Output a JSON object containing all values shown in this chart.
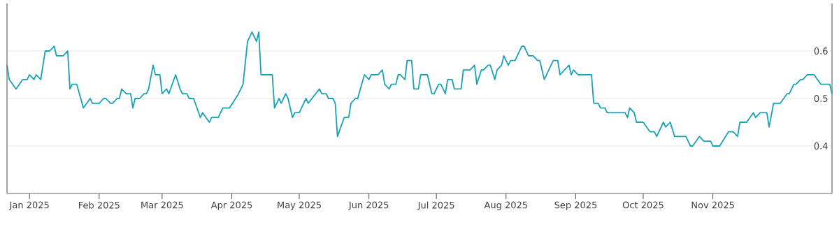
{
  "chart_data": {
    "type": "line",
    "color": "#17a3b6",
    "grid": "y",
    "xlim": [
      "2024-12-22",
      "2025-12-24"
    ],
    "ylim": [
      0.3,
      0.7
    ],
    "xticks": [
      {
        "value": "2025-01-01",
        "label": "Jan 2025"
      },
      {
        "value": "2025-02-01",
        "label": "Feb 2025"
      },
      {
        "value": "2025-03-01",
        "label": "Mar 2025"
      },
      {
        "value": "2025-04-01",
        "label": "Apr 2025"
      },
      {
        "value": "2025-05-01",
        "label": "May 2025"
      },
      {
        "value": "2025-06-01",
        "label": "Jun 2025"
      },
      {
        "value": "2025-07-01",
        "label": "Jul 2025"
      },
      {
        "value": "2025-08-01",
        "label": "Aug 2025"
      },
      {
        "value": "2025-09-01",
        "label": "Sep 2025"
      },
      {
        "value": "2025-10-01",
        "label": "Oct 2025"
      },
      {
        "value": "2025-11-01",
        "label": "Nov 2025"
      }
    ],
    "yticks": [
      0.4,
      0.5,
      0.6
    ],
    "x": [
      "2024-12-22",
      "2024-12-23",
      "2024-12-26",
      "2024-12-29",
      "2024-12-31",
      "2025-01-01",
      "2025-01-03",
      "2025-01-04",
      "2025-01-06",
      "2025-01-08",
      "2025-01-10",
      "2025-01-12",
      "2025-01-13",
      "2025-01-16",
      "2025-01-18",
      "2025-01-19",
      "2025-01-20",
      "2025-01-22",
      "2025-01-25",
      "2025-01-28",
      "2025-01-29",
      "2025-02-01",
      "2025-02-03",
      "2025-02-04",
      "2025-02-06",
      "2025-02-07",
      "2025-02-09",
      "2025-02-10",
      "2025-02-11",
      "2025-02-13",
      "2025-02-15",
      "2025-02-16",
      "2025-02-17",
      "2025-02-19",
      "2025-02-21",
      "2025-02-22",
      "2025-02-23",
      "2025-02-25",
      "2025-02-26",
      "2025-02-28",
      "2025-03-01",
      "2025-03-03",
      "2025-03-04",
      "2025-03-07",
      "2025-03-09",
      "2025-03-10",
      "2025-03-12",
      "2025-03-13",
      "2025-03-15",
      "2025-03-18",
      "2025-03-19",
      "2025-03-22",
      "2025-03-23",
      "2025-03-26",
      "2025-03-28",
      "2025-03-31",
      "2025-04-04",
      "2025-04-06",
      "2025-04-08",
      "2025-04-10",
      "2025-04-12",
      "2025-04-13",
      "2025-04-14",
      "2025-04-19",
      "2025-04-20",
      "2025-04-22",
      "2025-04-23",
      "2025-04-25",
      "2025-04-26",
      "2025-04-28",
      "2025-04-29",
      "2025-05-01",
      "2025-05-02",
      "2025-05-04",
      "2025-05-05",
      "2025-05-10",
      "2025-05-11",
      "2025-05-13",
      "2025-05-14",
      "2025-05-16",
      "2025-05-17",
      "2025-05-18",
      "2025-05-21",
      "2025-05-23",
      "2025-05-24",
      "2025-05-26",
      "2025-05-27",
      "2025-05-30",
      "2025-06-01",
      "2025-06-02",
      "2025-06-05",
      "2025-06-07",
      "2025-06-08",
      "2025-06-10",
      "2025-06-11",
      "2025-06-13",
      "2025-06-14",
      "2025-06-15",
      "2025-06-17",
      "2025-06-18",
      "2025-06-20",
      "2025-06-21",
      "2025-06-23",
      "2025-06-24",
      "2025-06-27",
      "2025-06-29",
      "2025-06-30",
      "2025-07-02",
      "2025-07-03",
      "2025-07-05",
      "2025-07-06",
      "2025-07-08",
      "2025-07-09",
      "2025-07-12",
      "2025-07-13",
      "2025-07-16",
      "2025-07-18",
      "2025-07-19",
      "2025-07-21",
      "2025-07-22",
      "2025-07-24",
      "2025-07-25",
      "2025-07-27",
      "2025-07-28",
      "2025-07-30",
      "2025-07-31",
      "2025-08-02",
      "2025-08-03",
      "2025-08-05",
      "2025-08-06",
      "2025-08-08",
      "2025-08-09",
      "2025-08-11",
      "2025-08-13",
      "2025-08-15",
      "2025-08-16",
      "2025-08-18",
      "2025-08-20",
      "2025-08-22",
      "2025-08-24",
      "2025-08-25",
      "2025-08-29",
      "2025-08-30",
      "2025-08-31",
      "2025-09-02",
      "2025-09-08",
      "2025-09-09",
      "2025-09-11",
      "2025-09-12",
      "2025-09-14",
      "2025-09-15",
      "2025-09-23",
      "2025-09-24",
      "2025-09-25",
      "2025-09-27",
      "2025-09-28",
      "2025-10-01",
      "2025-10-04",
      "2025-10-06",
      "2025-10-07",
      "2025-10-08",
      "2025-10-10",
      "2025-10-11",
      "2025-10-13",
      "2025-10-15",
      "2025-10-20",
      "2025-10-22",
      "2025-10-23",
      "2025-10-26",
      "2025-10-28",
      "2025-10-31",
      "2025-11-01",
      "2025-11-04",
      "2025-11-08",
      "2025-11-10",
      "2025-11-12",
      "2025-11-13",
      "2025-11-16",
      "2025-11-19",
      "2025-11-20",
      "2025-11-22",
      "2025-11-25",
      "2025-11-26",
      "2025-11-28",
      "2025-12-01",
      "2025-12-04",
      "2025-12-05",
      "2025-12-07",
      "2025-12-08",
      "2025-12-10",
      "2025-12-11",
      "2025-12-13",
      "2025-12-16",
      "2025-12-19",
      "2025-12-23",
      "2025-12-24"
    ],
    "values": [
      0.57,
      0.54,
      0.52,
      0.54,
      0.54,
      0.55,
      0.54,
      0.55,
      0.54,
      0.6,
      0.6,
      0.61,
      0.59,
      0.59,
      0.6,
      0.52,
      0.53,
      0.53,
      0.48,
      0.5,
      0.49,
      0.49,
      0.5,
      0.5,
      0.49,
      0.49,
      0.5,
      0.5,
      0.52,
      0.51,
      0.51,
      0.48,
      0.5,
      0.5,
      0.51,
      0.51,
      0.52,
      0.57,
      0.55,
      0.55,
      0.51,
      0.52,
      0.51,
      0.55,
      0.52,
      0.51,
      0.51,
      0.5,
      0.5,
      0.46,
      0.47,
      0.45,
      0.46,
      0.46,
      0.48,
      0.48,
      0.51,
      0.53,
      0.62,
      0.64,
      0.62,
      0.64,
      0.55,
      0.55,
      0.48,
      0.5,
      0.49,
      0.51,
      0.5,
      0.46,
      0.47,
      0.47,
      0.48,
      0.5,
      0.49,
      0.52,
      0.51,
      0.51,
      0.5,
      0.5,
      0.49,
      0.42,
      0.46,
      0.46,
      0.49,
      0.5,
      0.5,
      0.55,
      0.54,
      0.55,
      0.55,
      0.56,
      0.53,
      0.52,
      0.53,
      0.53,
      0.55,
      0.55,
      0.54,
      0.58,
      0.58,
      0.52,
      0.52,
      0.55,
      0.55,
      0.51,
      0.51,
      0.53,
      0.53,
      0.51,
      0.54,
      0.54,
      0.52,
      0.52,
      0.56,
      0.56,
      0.57,
      0.53,
      0.56,
      0.56,
      0.57,
      0.57,
      0.54,
      0.56,
      0.57,
      0.59,
      0.57,
      0.58,
      0.58,
      0.59,
      0.61,
      0.61,
      0.59,
      0.59,
      0.58,
      0.58,
      0.54,
      0.56,
      0.58,
      0.58,
      0.55,
      0.57,
      0.55,
      0.56,
      0.55,
      0.55,
      0.49,
      0.49,
      0.48,
      0.48,
      0.47,
      0.47,
      0.46,
      0.48,
      0.47,
      0.45,
      0.45,
      0.43,
      0.43,
      0.42,
      0.43,
      0.45,
      0.44,
      0.45,
      0.42,
      0.42,
      0.4,
      0.4,
      0.42,
      0.41,
      0.41,
      0.4,
      0.4,
      0.43,
      0.43,
      0.42,
      0.45,
      0.45,
      0.47,
      0.46,
      0.47,
      0.47,
      0.44,
      0.49,
      0.49,
      0.51,
      0.51,
      0.53,
      0.53,
      0.54,
      0.54,
      0.55,
      0.55,
      0.53,
      0.53,
      0.51
    ]
  }
}
